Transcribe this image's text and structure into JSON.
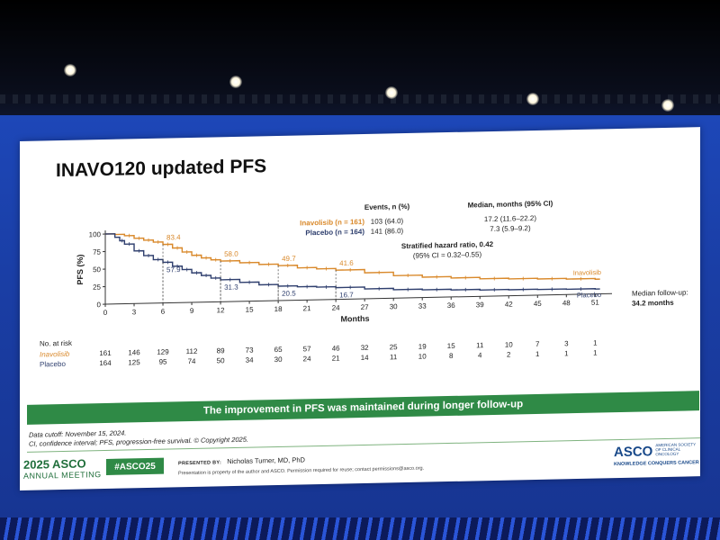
{
  "slide": {
    "title": "INAVO120 updated PFS",
    "banner": "The improvement in PFS was maintained during longer follow-up",
    "footnotes": [
      "Data cutoff: November 15, 2024.",
      "CI, confidence interval; PFS, progression-free survival. © Copyright 2025."
    ],
    "meeting_line1": "2025 ASCO",
    "meeting_line2": "ANNUAL MEETING",
    "hashtag": "#ASCO25",
    "presented_label": "PRESENTED BY:",
    "presenter": "Nicholas Turner, MD, PhD",
    "disclaimer": "Presentation is property of the author and ASCO. Permission required for reuse; contact permissions@asco.org.",
    "asco_name": "ASCO",
    "asco_society": "AMERICAN SOCIETY OF CLINICAL ONCOLOGY",
    "asco_tagline": "KNOWLEDGE CONQUERS CANCER"
  },
  "colors": {
    "inavolisib": "#d9892b",
    "placebo": "#2f3f6e",
    "banner_green": "#2f8a46"
  },
  "chart_data": {
    "type": "line",
    "title": "",
    "xlabel": "Months",
    "ylabel": "PFS (%)",
    "xlim": [
      0,
      52
    ],
    "ylim": [
      0,
      100
    ],
    "x_ticks": [
      0,
      3,
      6,
      9,
      12,
      15,
      18,
      21,
      24,
      27,
      30,
      33,
      36,
      39,
      42,
      45,
      48,
      51
    ],
    "y_ticks": [
      0,
      25,
      50,
      75,
      100
    ],
    "series": [
      {
        "name": "Inavolisib (n = 161)",
        "end_label": "Inavolisib",
        "x": [
          0,
          1,
          2,
          3,
          4,
          5,
          6,
          7,
          8,
          9,
          10,
          11,
          12,
          14,
          16,
          18,
          20,
          22,
          24,
          27,
          30,
          33,
          36,
          39,
          42,
          45,
          48,
          51
        ],
        "y": [
          100,
          99,
          97,
          93,
          90,
          87,
          83.4,
          78,
          72,
          67,
          63,
          60,
          58.0,
          55,
          52,
          49.7,
          46,
          44,
          41.6,
          37,
          32,
          29,
          27,
          25,
          24,
          23,
          22,
          21
        ]
      },
      {
        "name": "Placebo (n = 164)",
        "end_label": "Placebo",
        "x": [
          0,
          1,
          1.5,
          2,
          3,
          4,
          5,
          6,
          7,
          8,
          9,
          10,
          11,
          12,
          14,
          16,
          18,
          20,
          22,
          24,
          27,
          30,
          33,
          36,
          39,
          42,
          45,
          48,
          51
        ],
        "y": [
          100,
          95,
          90,
          85,
          75,
          68,
          62,
          57.9,
          52,
          47,
          42,
          38,
          34,
          31.3,
          27,
          23,
          20.5,
          19,
          18,
          16.7,
          14,
          12,
          11,
          10,
          9,
          8.5,
          8,
          7.5,
          7
        ]
      }
    ],
    "annotations": [
      {
        "series": "Inavolisib (n = 161)",
        "x": 6,
        "y": 83.4,
        "label": "83.4"
      },
      {
        "series": "Inavolisib (n = 161)",
        "x": 12,
        "y": 58.0,
        "label": "58.0"
      },
      {
        "series": "Inavolisib (n = 161)",
        "x": 18,
        "y": 49.7,
        "label": "49.7"
      },
      {
        "series": "Inavolisib (n = 161)",
        "x": 24,
        "y": 41.6,
        "label": "41.6"
      },
      {
        "series": "Placebo (n = 164)",
        "x": 6,
        "y": 57.9,
        "label": "57.9"
      },
      {
        "series": "Placebo (n = 164)",
        "x": 12,
        "y": 31.3,
        "label": "31.3"
      },
      {
        "series": "Placebo (n = 164)",
        "x": 18,
        "y": 20.5,
        "label": "20.5"
      },
      {
        "series": "Placebo (n = 164)",
        "x": 24,
        "y": 16.7,
        "label": "16.7"
      }
    ],
    "stats_table": {
      "col_events": "Events, n (%)",
      "col_median": "Median, months (95% CI)",
      "rows": [
        {
          "label": "Inavolisib (n = 161)",
          "events": "103 (64.0)",
          "median": "17.2 (11.6–22.2)"
        },
        {
          "label": "Placebo (n = 164)",
          "events": "141 (86.0)",
          "median": "7.3 (5.9–9.2)"
        }
      ],
      "hr_line1": "Stratified hazard ratio, 0.42",
      "hr_line2": "(95% CI = 0.32–0.55)"
    },
    "followup_line1": "Median follow-up:",
    "followup_line2": "34.2 months",
    "at_risk": {
      "header": "No. at risk",
      "rows": [
        {
          "label": "Inavolisib",
          "values": [
            "161",
            "146",
            "129",
            "112",
            "89",
            "73",
            "65",
            "57",
            "46",
            "32",
            "25",
            "19",
            "15",
            "11",
            "10",
            "7",
            "3",
            "1"
          ]
        },
        {
          "label": "Placebo",
          "values": [
            "164",
            "125",
            "95",
            "74",
            "50",
            "34",
            "30",
            "24",
            "21",
            "14",
            "11",
            "10",
            "8",
            "4",
            "2",
            "1",
            "1",
            "1"
          ]
        }
      ]
    }
  }
}
